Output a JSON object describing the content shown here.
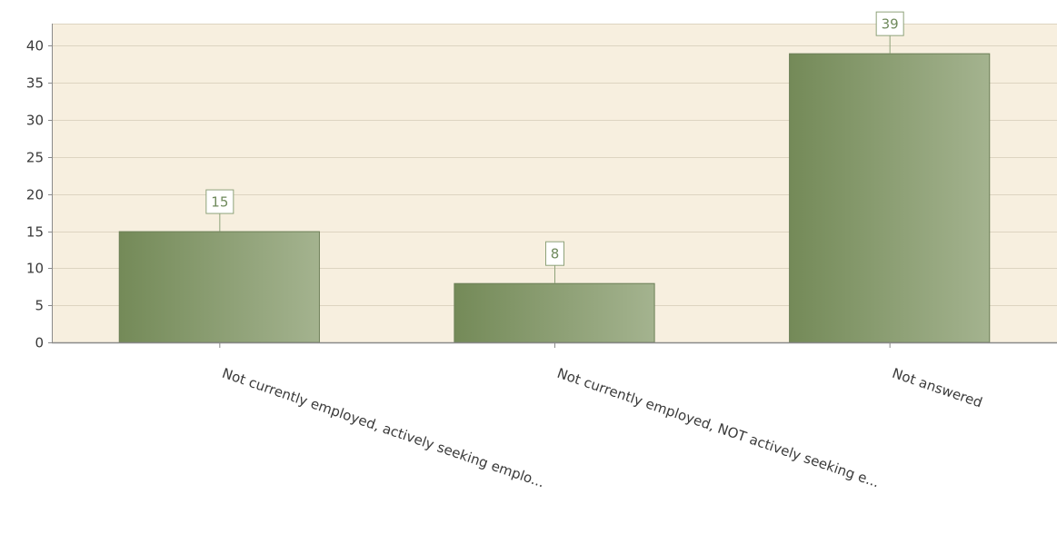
{
  "chart_data": {
    "type": "bar",
    "categories": [
      "Not currently employed, actively seeking emplo...",
      "Not currently employed, NOT actively seeking e...",
      "Not answered"
    ],
    "values": [
      15,
      8,
      39
    ],
    "ylim": [
      0,
      43
    ],
    "yticks": [
      0,
      5,
      10,
      15,
      20,
      25,
      30,
      35,
      40
    ],
    "grid": true,
    "legend": "none",
    "colors": {
      "plot_background": "#f7efdf",
      "gridline": "#ddd4c1",
      "bar_dark": "#748a58",
      "bar_light": "#a4b38f",
      "bar_border": "#6c7f57",
      "axis": "#8a8a8a",
      "data_label_border": "#8ea27a"
    }
  }
}
